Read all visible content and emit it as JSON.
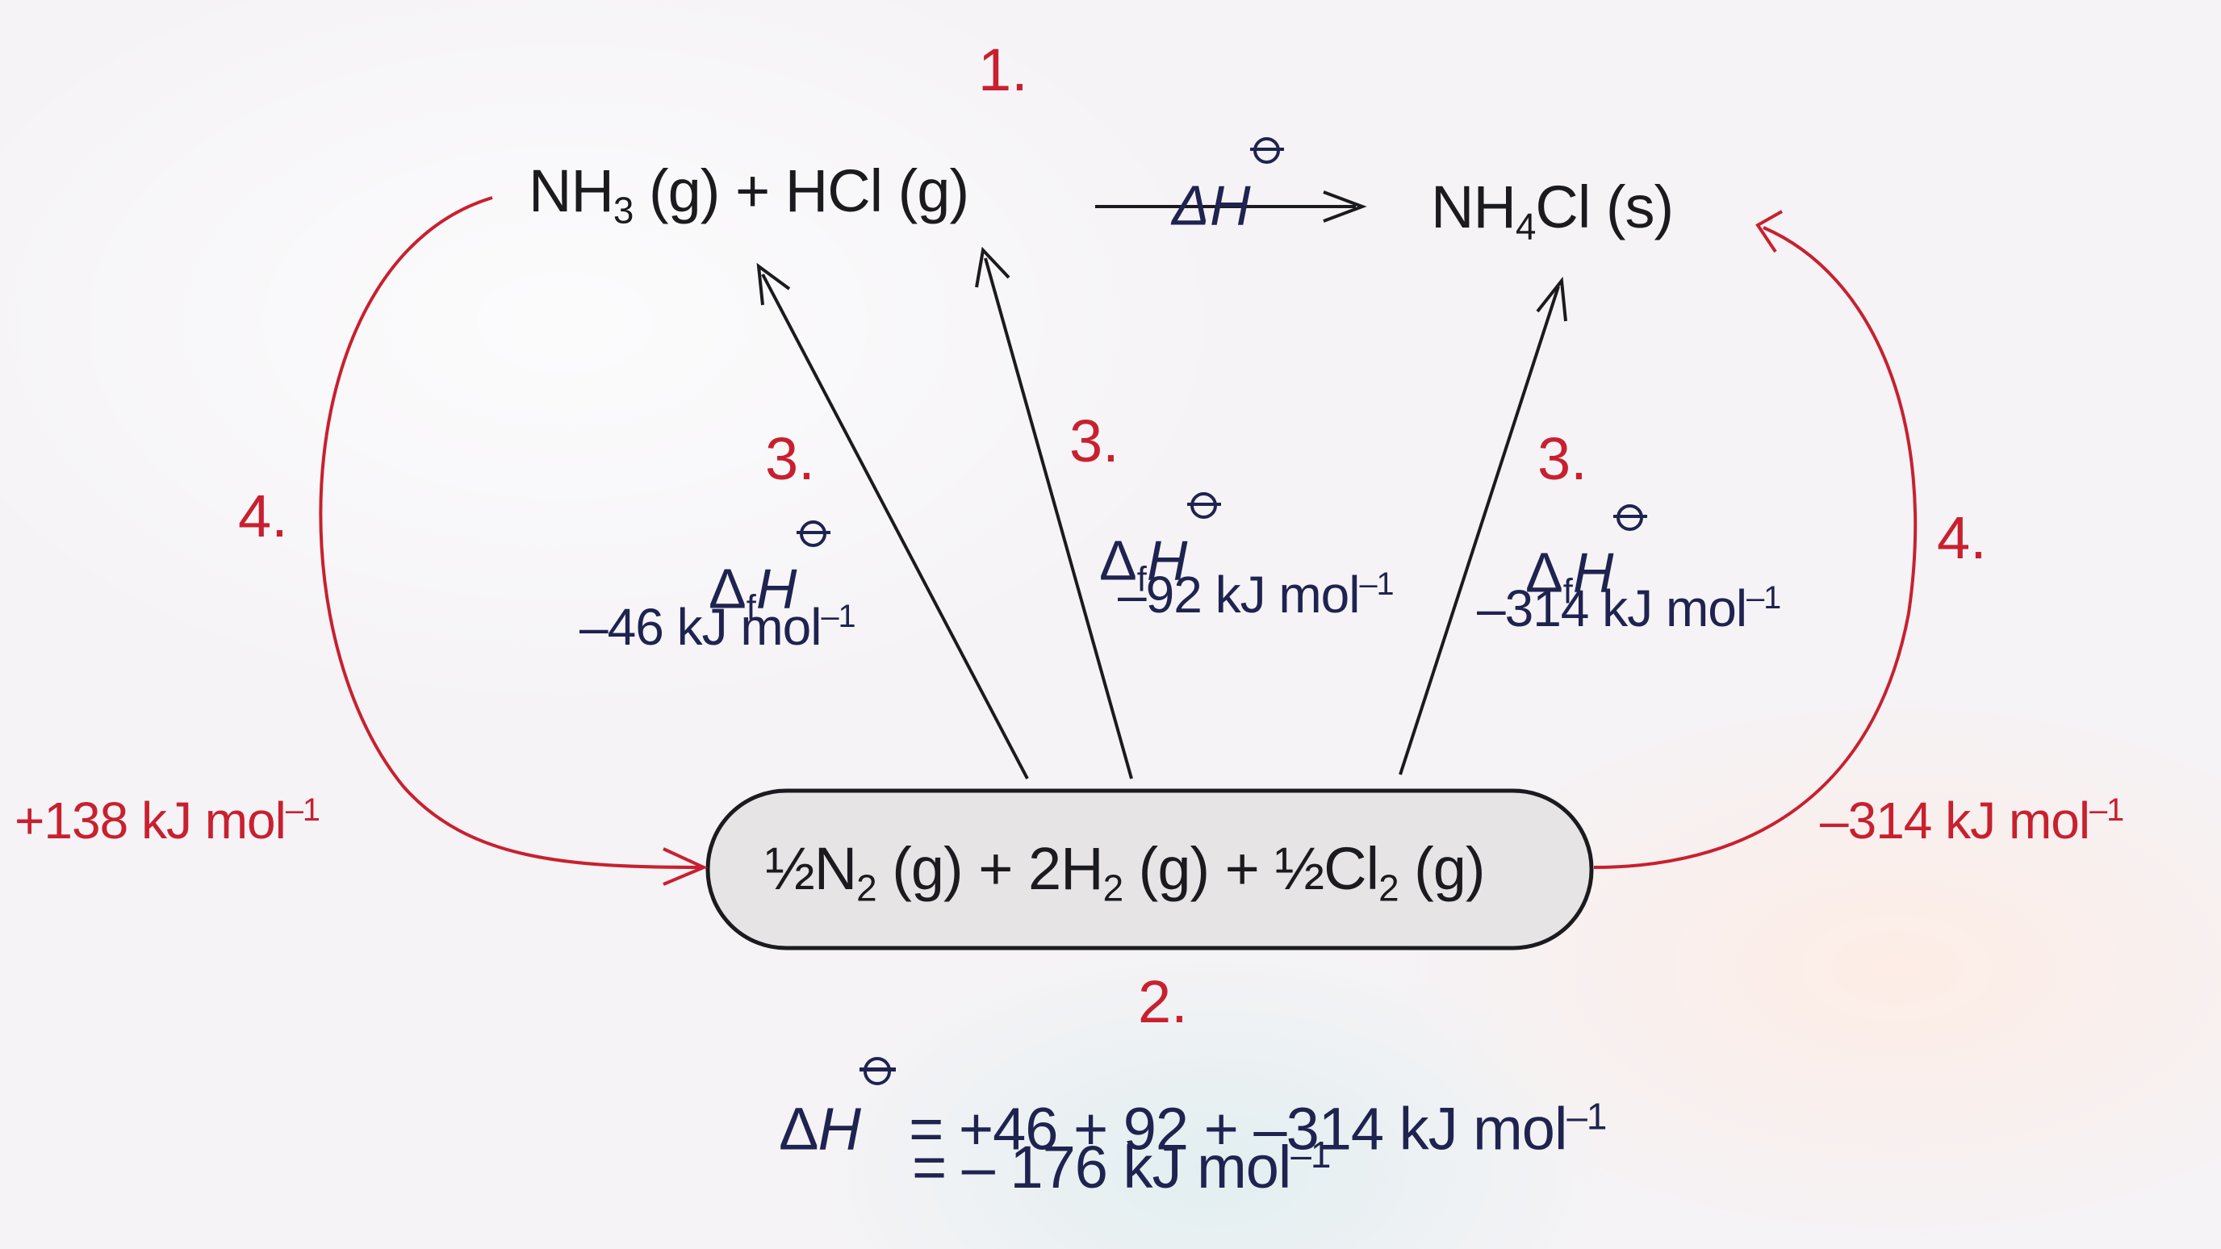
{
  "step_labels": {
    "one": "1.",
    "two": "2.",
    "three_a": "3.",
    "three_b": "3.",
    "three_c": "3.",
    "four_left": "4.",
    "four_right": "4."
  },
  "reaction": {
    "reactants": {
      "nh3": "NH",
      "nh3_sub": "3",
      "nh3_state": "(g)",
      "plus": "+",
      "hcl": "HCl (g)"
    },
    "arrow_label": "ΔH",
    "product": {
      "nh4": "NH",
      "nh4_sub": "4",
      "rest": "Cl (s)"
    }
  },
  "elements": {
    "half_n2": "½N",
    "n2_sub": "2",
    "n2_state": " (g) + 2H",
    "h2_sub": "2",
    "h2_state": " (g) + ½Cl",
    "cl2_sub": "2",
    "cl2_state": " (g)"
  },
  "formation": {
    "symbol": "Δ",
    "sub_f": "f",
    "H": "H",
    "nh3_value": "–46 kJ mol",
    "hcl_value": "–92 kJ mol",
    "nh4cl_value": "–314 kJ mol",
    "exp": "–1"
  },
  "cycle": {
    "left_value": "+138 kJ mol",
    "right_value": "–314 kJ mol",
    "exp": "–1"
  },
  "result": {
    "delta": "Δ",
    "H": "H",
    "line1": "=  +46 + 92 + –314 kJ mol",
    "line2": "= – 176 kJ mol",
    "exp": "–1"
  },
  "colors": {
    "red": "#c8202f",
    "navy": "#1f2350",
    "black": "#1b1b1f",
    "box_fill": "#e6e4e5"
  }
}
